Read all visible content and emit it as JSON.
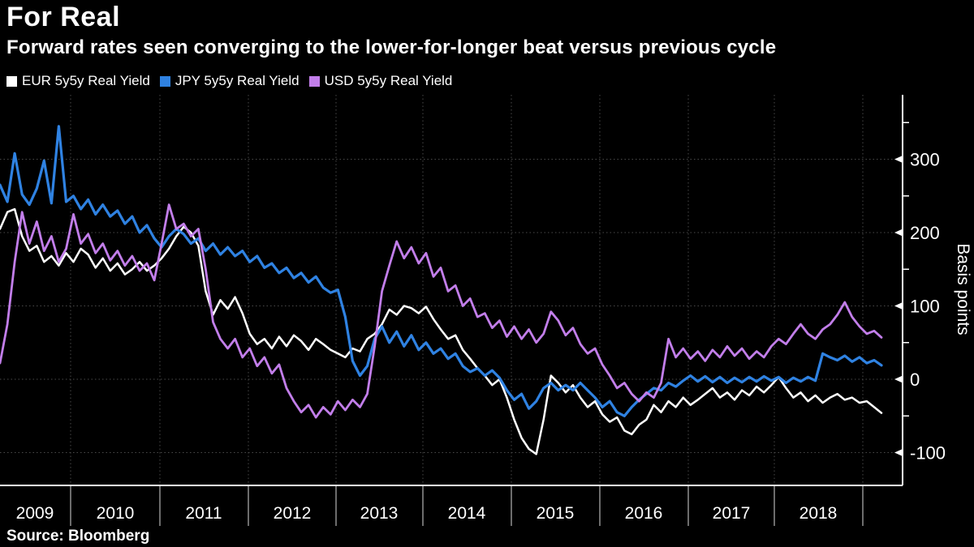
{
  "header": {
    "title": "For Real",
    "subtitle": "Forward rates seen converging to the lower-for-longer beat versus previous cycle"
  },
  "legend": {
    "items": [
      {
        "label": "EUR 5y5y Real Yield",
        "color": "#FFFFFF"
      },
      {
        "label": "JPY 5y5y Real Yield",
        "color": "#2F82E2"
      },
      {
        "label": "USD 5y5y Real Yield",
        "color": "#C27EEA"
      }
    ]
  },
  "footer": {
    "source": "Source:  Bloomberg"
  },
  "chart_data": {
    "type": "line",
    "title": "For Real",
    "subtitle": "Forward rates seen converging to the lower-for-longer beat versus previous cycle",
    "unit": "basis points",
    "ylabel": "Basis points",
    "ylim": [
      -145,
      388
    ],
    "yticks": [
      300,
      200,
      100,
      0,
      -100
    ],
    "minor_yticks": [
      350,
      250,
      150,
      50,
      -50
    ],
    "grid": "dotted",
    "legend_position": "top-left",
    "x_year_labels": [
      "2009",
      "2010",
      "2011",
      "2012",
      "2013",
      "2014",
      "2015",
      "2016",
      "2017",
      "2018"
    ],
    "x_start_year": 2009.2,
    "x_end_year": 2019.2,
    "points_per_year": 12,
    "series": [
      {
        "name": "EUR 5y5y Real Yield",
        "color": "#FFFFFF",
        "values": [
          205,
          228,
          232,
          195,
          175,
          182,
          160,
          168,
          155,
          172,
          160,
          178,
          170,
          152,
          165,
          148,
          158,
          143,
          150,
          160,
          148,
          155,
          165,
          178,
          195,
          208,
          200,
          182,
          120,
          88,
          108,
          96,
          112,
          90,
          62,
          48,
          55,
          42,
          58,
          45,
          60,
          52,
          40,
          55,
          48,
          40,
          35,
          30,
          42,
          38,
          55,
          62,
          75,
          95,
          88,
          100,
          97,
          90,
          99,
          82,
          68,
          55,
          60,
          40,
          28,
          15,
          5,
          -8,
          0,
          -25,
          -55,
          -80,
          -95,
          -102,
          -55,
          5,
          -5,
          -18,
          -8,
          -25,
          -38,
          -30,
          -48,
          -58,
          -52,
          -70,
          -75,
          -62,
          -55,
          -35,
          -45,
          -30,
          -38,
          -25,
          -35,
          -28,
          -20,
          -12,
          -25,
          -18,
          -28,
          -15,
          -22,
          -10,
          -18,
          -8,
          3,
          -12,
          -25,
          -18,
          -30,
          -22,
          -32,
          -25,
          -20,
          -28,
          -25,
          -32,
          -30,
          -38,
          -46
        ]
      },
      {
        "name": "JPY 5y5y Real Yield",
        "color": "#2F82E2",
        "values": [
          265,
          242,
          308,
          252,
          238,
          260,
          298,
          240,
          345,
          242,
          250,
          232,
          245,
          225,
          238,
          222,
          230,
          212,
          222,
          200,
          210,
          192,
          180,
          195,
          205,
          198,
          185,
          192,
          175,
          185,
          170,
          180,
          168,
          175,
          160,
          168,
          152,
          158,
          145,
          152,
          138,
          145,
          132,
          140,
          125,
          118,
          122,
          85,
          25,
          5,
          18,
          55,
          72,
          50,
          65,
          45,
          60,
          40,
          50,
          35,
          42,
          28,
          35,
          18,
          10,
          15,
          5,
          12,
          2,
          -15,
          -28,
          -20,
          -40,
          -30,
          -12,
          -5,
          -15,
          -8,
          -15,
          -5,
          -15,
          -25,
          -38,
          -30,
          -45,
          -50,
          -38,
          -28,
          -20,
          -12,
          -15,
          -5,
          -10,
          -2,
          5,
          -3,
          4,
          -4,
          3,
          -5,
          2,
          -4,
          3,
          -3,
          4,
          -2,
          3,
          -5,
          2,
          -3,
          3,
          -2,
          35,
          30,
          26,
          32,
          24,
          30,
          22,
          26,
          19
        ]
      },
      {
        "name": "USD 5y5y Real Yield",
        "color": "#C27EEA",
        "values": [
          22,
          75,
          160,
          228,
          185,
          215,
          175,
          195,
          160,
          178,
          225,
          185,
          198,
          172,
          185,
          162,
          175,
          155,
          168,
          148,
          158,
          135,
          185,
          238,
          205,
          212,
          195,
          205,
          150,
          78,
          55,
          42,
          55,
          30,
          42,
          18,
          30,
          8,
          20,
          -12,
          -30,
          -45,
          -35,
          -52,
          -38,
          -48,
          -30,
          -42,
          -28,
          -38,
          -20,
          45,
          120,
          155,
          188,
          165,
          180,
          158,
          172,
          140,
          152,
          120,
          128,
          100,
          110,
          85,
          90,
          70,
          80,
          58,
          72,
          55,
          68,
          50,
          62,
          92,
          80,
          60,
          70,
          48,
          35,
          42,
          20,
          5,
          -12,
          -5,
          -20,
          -30,
          -18,
          -25,
          -5,
          55,
          30,
          42,
          28,
          38,
          25,
          40,
          30,
          45,
          32,
          42,
          28,
          38,
          30,
          45,
          55,
          48,
          62,
          75,
          62,
          55,
          68,
          75,
          88,
          105,
          85,
          72,
          62,
          66,
          57
        ]
      }
    ],
    "source": "Source:  Bloomberg"
  }
}
